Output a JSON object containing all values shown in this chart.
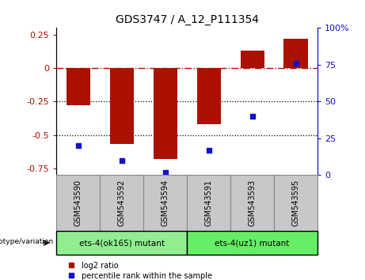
{
  "title": "GDS3747 / A_12_P111354",
  "samples": [
    "GSM543590",
    "GSM543592",
    "GSM543594",
    "GSM543591",
    "GSM543593",
    "GSM543595"
  ],
  "log2_ratio": [
    -0.28,
    -0.57,
    -0.68,
    -0.42,
    0.13,
    0.22
  ],
  "percentile_rank": [
    20,
    10,
    2,
    17,
    40,
    76
  ],
  "groups": [
    {
      "label": "ets-4(ok165) mutant",
      "samples_idx": [
        0,
        1,
        2
      ],
      "color": "#90EE90"
    },
    {
      "label": "ets-4(uz1) mutant",
      "samples_idx": [
        3,
        4,
        5
      ],
      "color": "#66EE66"
    }
  ],
  "ylim_left": [
    -0.8,
    0.3
  ],
  "ylim_right": [
    0,
    100
  ],
  "bar_color": "#AA1100",
  "dot_color": "#1111CC",
  "dotted_lines": [
    -0.25,
    -0.5
  ],
  "right_ticks": [
    0,
    25,
    50,
    75,
    100
  ],
  "right_tick_labels": [
    "0",
    "25",
    "50",
    "75",
    "100%"
  ],
  "left_ticks": [
    -0.75,
    -0.5,
    -0.25,
    0,
    0.25
  ],
  "left_tick_labels": [
    "-0.75",
    "-0.5",
    "-0.25",
    "0",
    "0.25"
  ],
  "legend_log2_label": "log2 ratio",
  "legend_pct_label": "percentile rank within the sample",
  "genotype_label": "genotype/variation",
  "sample_box_color": "#C8C8C8",
  "bar_width": 0.55
}
